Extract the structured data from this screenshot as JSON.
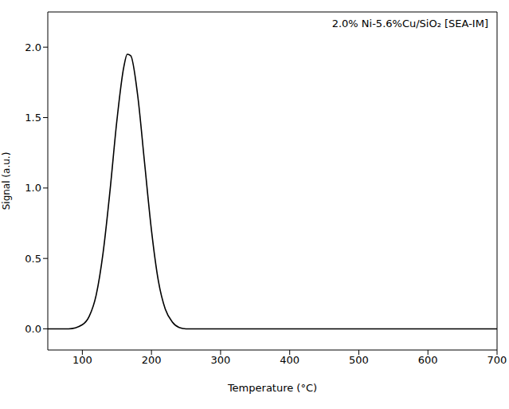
{
  "chart_data": {
    "type": "line",
    "annotation": "2.0% Ni-5.6%Cu/SiO₂ [SEA-IM]",
    "x_label": "Temperature (°C)",
    "y_label": "Signal (a.u.)",
    "x": [
      50,
      80,
      100,
      110,
      120,
      130,
      140,
      150,
      160,
      165,
      170,
      180,
      190,
      200,
      210,
      220,
      230,
      240,
      250,
      300,
      400,
      500,
      600,
      700
    ],
    "series": [
      {
        "name": "2.0% Ni-5.6%Cu/SiO₂ [SEA-IM]",
        "color": "#000000",
        "values": [
          0,
          0,
          0.03,
          0.09,
          0.24,
          0.54,
          0.98,
          1.48,
          1.86,
          1.95,
          1.94,
          1.66,
          1.18,
          0.7,
          0.34,
          0.14,
          0.05,
          0.01,
          0,
          0,
          0,
          0,
          0,
          0
        ]
      }
    ],
    "xlim": [
      50,
      700
    ],
    "xticks": [
      100,
      200,
      300,
      400,
      500,
      600,
      700
    ],
    "ylim": [
      -0.15,
      2.25
    ],
    "yticks": [
      {
        "value": 0,
        "label": "0.0"
      },
      0.5,
      {
        "value": 1,
        "label": "1.0"
      },
      1.5,
      {
        "value": 2,
        "label": "2.0"
      }
    ],
    "grid": false
  }
}
